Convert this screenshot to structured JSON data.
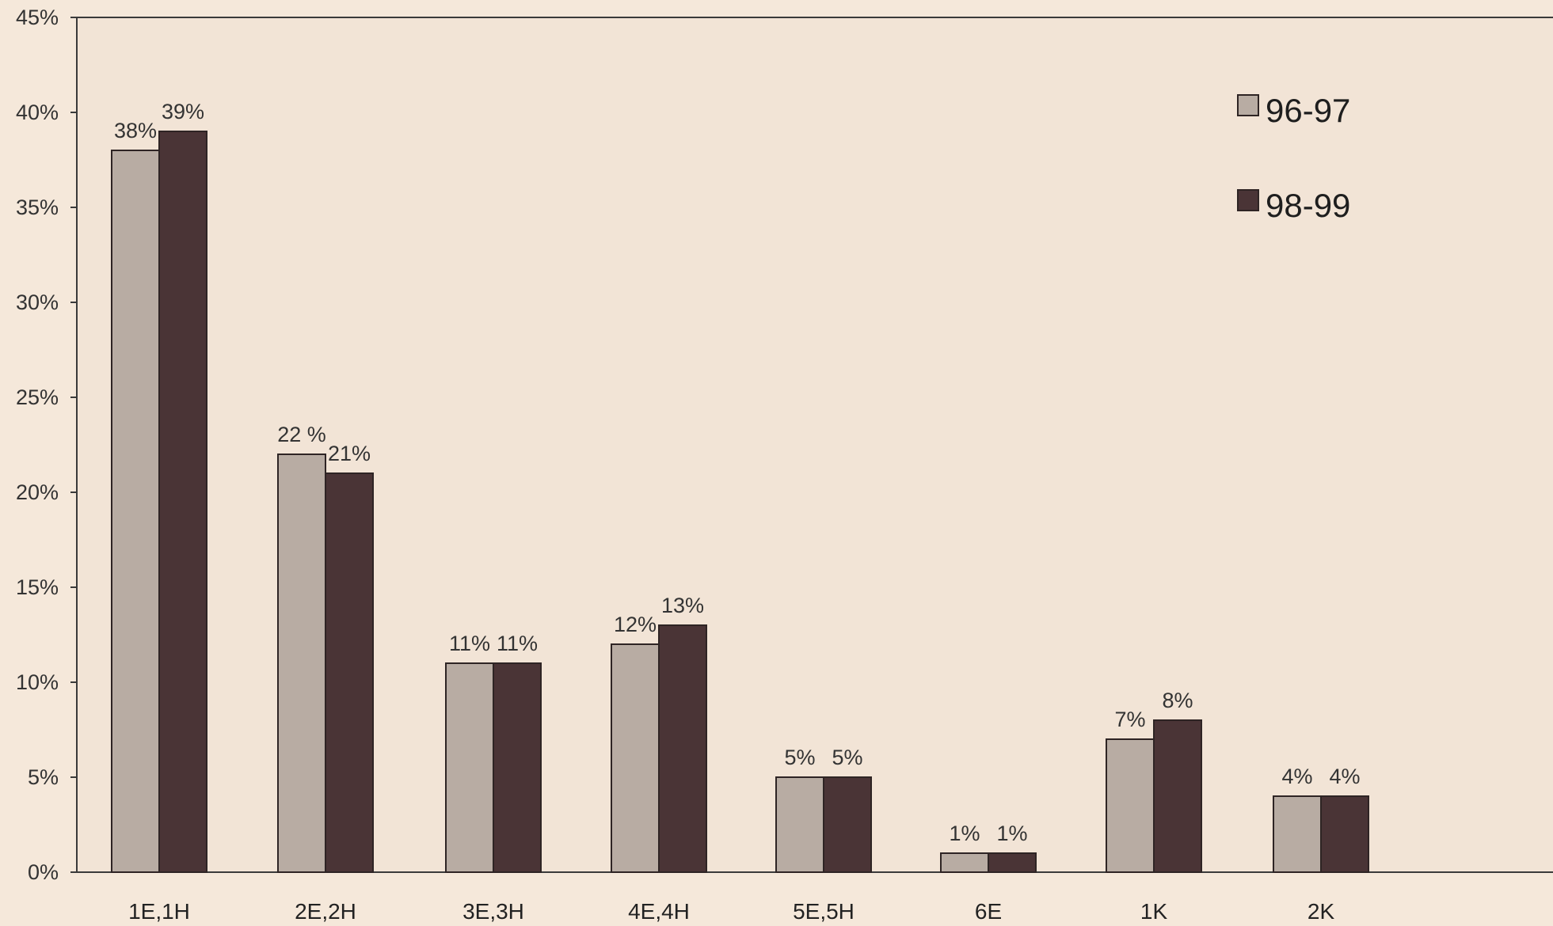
{
  "colors": {
    "background": "#f5e8da",
    "plot_background": "#f2e4d6",
    "axis": "#3a3a3a",
    "series_96_97": "#b8aca3",
    "series_98_99": "#4a3436",
    "bar_border": "#2e2424"
  },
  "chart_data": {
    "type": "bar",
    "title": "",
    "xlabel": "",
    "ylabel": "",
    "ylim": [
      0,
      45
    ],
    "yticks": [
      0,
      5,
      10,
      15,
      20,
      25,
      30,
      35,
      40,
      45
    ],
    "ytick_labels": [
      "0%",
      "5%",
      "10%",
      "15%",
      "20%",
      "25%",
      "30%",
      "35%",
      "40%",
      "45%"
    ],
    "grid": false,
    "legend_position": "top-right",
    "categories": [
      "1E,1H",
      "2E,2H",
      "3E,3H",
      "4E,4H",
      "5E,5H",
      "6E",
      "1K",
      "2K"
    ],
    "series": [
      {
        "name": "96-97",
        "values": [
          38,
          22,
          11,
          12,
          5,
          1,
          7,
          4
        ],
        "labels": [
          "38%",
          "22 %",
          "11%",
          "12%",
          "5%",
          "1%",
          "7%",
          "4%"
        ]
      },
      {
        "name": "98-99",
        "values": [
          39,
          21,
          11,
          13,
          5,
          1,
          8,
          4
        ],
        "labels": [
          "39%",
          "21%",
          "11%",
          "13%",
          "5%",
          "1%",
          "8%",
          "4%"
        ]
      }
    ]
  }
}
